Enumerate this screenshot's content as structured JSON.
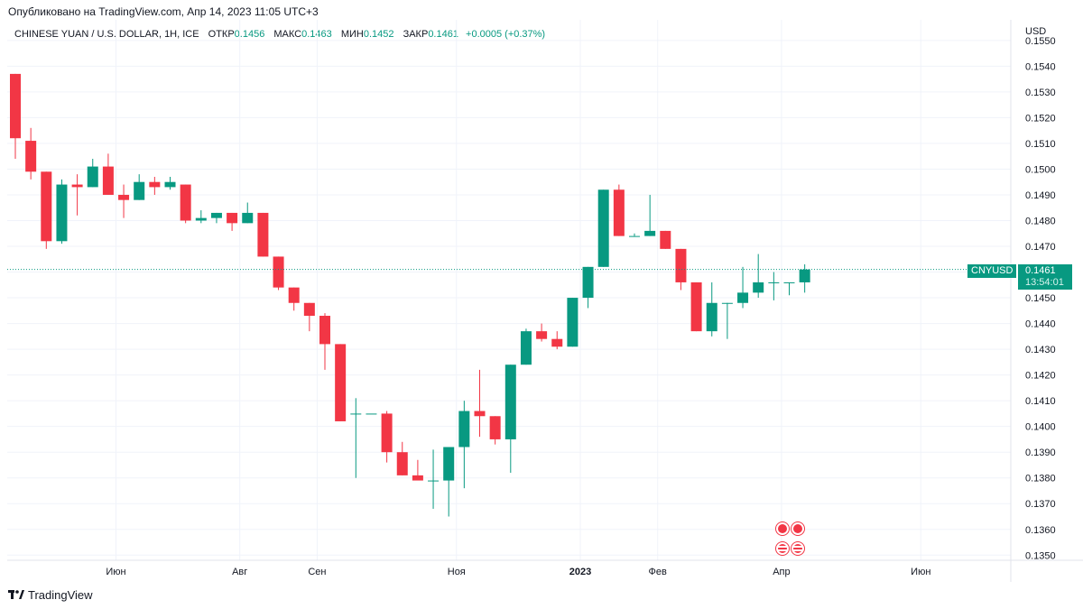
{
  "header": {
    "published": "Опубликовано на TradingView.com, Апр 14, 2023 11:05 UTC+3"
  },
  "legend": {
    "symbol_title": "CHINESE YUAN / U.S. DOLLAR, 1H, ICE",
    "open_label": "ОТКР",
    "open_value": "0.1456",
    "high_label": "МАКС",
    "high_value": "0.1463",
    "low_label": "МИН",
    "low_value": "0.1452",
    "close_label": "ЗАКР",
    "close_value": "0.1461",
    "change": "+0.0005 (+0.37%)"
  },
  "price_scale": {
    "currency": "USD",
    "ticks": [
      "0.1550",
      "0.1540",
      "0.1530",
      "0.1520",
      "0.1510",
      "0.1500",
      "0.1490",
      "0.1480",
      "0.1470",
      "0.1460",
      "0.1450",
      "0.1440",
      "0.1430",
      "0.1420",
      "0.1410",
      "0.1400",
      "0.1390",
      "0.1380",
      "0.1370",
      "0.1360",
      "0.1350"
    ]
  },
  "current_price": {
    "symbol": "CNYUSD",
    "value": "0.1461",
    "countdown": "13:54:01"
  },
  "time_axis": {
    "labels": [
      {
        "text": "Июн",
        "bar": 6.5
      },
      {
        "text": "Авг",
        "bar": 14.5
      },
      {
        "text": "Сен",
        "bar": 19.5
      },
      {
        "text": "Ноя",
        "bar": 28.5
      },
      {
        "text": "2023",
        "bar": 36.5,
        "bold": true
      },
      {
        "text": "Фев",
        "bar": 41.5
      },
      {
        "text": "Апр",
        "bar": 49.5
      },
      {
        "text": "Июн",
        "bar": 58.5
      }
    ]
  },
  "footer": {
    "brand": "TradingView"
  },
  "colors": {
    "up": "#089981",
    "down": "#f23645",
    "grid": "#f0f3fa",
    "text": "#131722"
  },
  "chart_data": {
    "type": "candlestick",
    "title": "CHINESE YUAN / U.S. DOLLAR, 1H, ICE",
    "ylabel": "USD",
    "ylim": [
      0.1348,
      0.1558
    ],
    "grid": true,
    "candles": [
      {
        "o": 0.1537,
        "h": 0.1537,
        "l": 0.1504,
        "c": 0.1512
      },
      {
        "o": 0.1511,
        "h": 0.1516,
        "l": 0.1496,
        "c": 0.1499
      },
      {
        "o": 0.1499,
        "h": 0.1499,
        "l": 0.1469,
        "c": 0.1472
      },
      {
        "o": 0.1472,
        "h": 0.1496,
        "l": 0.1471,
        "c": 0.1494
      },
      {
        "o": 0.1494,
        "h": 0.1498,
        "l": 0.1482,
        "c": 0.1493
      },
      {
        "o": 0.1493,
        "h": 0.1504,
        "l": 0.1493,
        "c": 0.1501
      },
      {
        "o": 0.1501,
        "h": 0.1506,
        "l": 0.149,
        "c": 0.149
      },
      {
        "o": 0.149,
        "h": 0.1494,
        "l": 0.1481,
        "c": 0.1488
      },
      {
        "o": 0.1488,
        "h": 0.1498,
        "l": 0.1488,
        "c": 0.1495
      },
      {
        "o": 0.1495,
        "h": 0.1497,
        "l": 0.149,
        "c": 0.1493
      },
      {
        "o": 0.1493,
        "h": 0.1497,
        "l": 0.1492,
        "c": 0.1495
      },
      {
        "o": 0.1494,
        "h": 0.1494,
        "l": 0.1479,
        "c": 0.148
      },
      {
        "o": 0.148,
        "h": 0.1484,
        "l": 0.1479,
        "c": 0.1481
      },
      {
        "o": 0.1481,
        "h": 0.1483,
        "l": 0.1479,
        "c": 0.1483
      },
      {
        "o": 0.1483,
        "h": 0.1483,
        "l": 0.1476,
        "c": 0.1479
      },
      {
        "o": 0.1479,
        "h": 0.1487,
        "l": 0.1479,
        "c": 0.1483
      },
      {
        "o": 0.1483,
        "h": 0.1483,
        "l": 0.1466,
        "c": 0.1466
      },
      {
        "o": 0.1466,
        "h": 0.1466,
        "l": 0.1453,
        "c": 0.1454
      },
      {
        "o": 0.1454,
        "h": 0.1454,
        "l": 0.1445,
        "c": 0.1448
      },
      {
        "o": 0.1448,
        "h": 0.1448,
        "l": 0.1437,
        "c": 0.1443
      },
      {
        "o": 0.1443,
        "h": 0.1444,
        "l": 0.1422,
        "c": 0.1432
      },
      {
        "o": 0.1432,
        "h": 0.1432,
        "l": 0.1402,
        "c": 0.1402
      },
      {
        "o": 0.1405,
        "h": 0.1411,
        "l": 0.138,
        "c": 0.1405
      },
      {
        "o": 0.1405,
        "h": 0.1405,
        "l": 0.1405,
        "c": 0.1405
      },
      {
        "o": 0.1405,
        "h": 0.1406,
        "l": 0.1386,
        "c": 0.139
      },
      {
        "o": 0.139,
        "h": 0.1394,
        "l": 0.1381,
        "c": 0.1381
      },
      {
        "o": 0.1381,
        "h": 0.1387,
        "l": 0.138,
        "c": 0.1379
      },
      {
        "o": 0.1379,
        "h": 0.1391,
        "l": 0.1368,
        "c": 0.1379
      },
      {
        "o": 0.1379,
        "h": 0.1392,
        "l": 0.1365,
        "c": 0.1392
      },
      {
        "o": 0.1392,
        "h": 0.141,
        "l": 0.1376,
        "c": 0.1406
      },
      {
        "o": 0.1406,
        "h": 0.1422,
        "l": 0.1396,
        "c": 0.1404
      },
      {
        "o": 0.1404,
        "h": 0.1404,
        "l": 0.1393,
        "c": 0.1395
      },
      {
        "o": 0.1395,
        "h": 0.1424,
        "l": 0.1382,
        "c": 0.1424
      },
      {
        "o": 0.1424,
        "h": 0.1438,
        "l": 0.1424,
        "c": 0.1437
      },
      {
        "o": 0.1437,
        "h": 0.144,
        "l": 0.1433,
        "c": 0.1434
      },
      {
        "o": 0.1434,
        "h": 0.1437,
        "l": 0.143,
        "c": 0.1431
      },
      {
        "o": 0.1431,
        "h": 0.145,
        "l": 0.1431,
        "c": 0.145
      },
      {
        "o": 0.145,
        "h": 0.1462,
        "l": 0.1446,
        "c": 0.1462
      },
      {
        "o": 0.1462,
        "h": 0.1492,
        "l": 0.1462,
        "c": 0.1492
      },
      {
        "o": 0.1492,
        "h": 0.1494,
        "l": 0.1474,
        "c": 0.1474
      },
      {
        "o": 0.1474,
        "h": 0.1475,
        "l": 0.1474,
        "c": 0.1474
      },
      {
        "o": 0.1474,
        "h": 0.149,
        "l": 0.1474,
        "c": 0.1476
      },
      {
        "o": 0.1476,
        "h": 0.1476,
        "l": 0.1469,
        "c": 0.1469
      },
      {
        "o": 0.1469,
        "h": 0.1469,
        "l": 0.1453,
        "c": 0.1456
      },
      {
        "o": 0.1456,
        "h": 0.1456,
        "l": 0.1437,
        "c": 0.1437
      },
      {
        "o": 0.1437,
        "h": 0.1456,
        "l": 0.1435,
        "c": 0.1448
      },
      {
        "o": 0.1448,
        "h": 0.1448,
        "l": 0.1434,
        "c": 0.1448
      },
      {
        "o": 0.1448,
        "h": 0.1462,
        "l": 0.1446,
        "c": 0.1452
      },
      {
        "o": 0.1452,
        "h": 0.1467,
        "l": 0.145,
        "c": 0.1456
      },
      {
        "o": 0.1456,
        "h": 0.146,
        "l": 0.1449,
        "c": 0.1456
      },
      {
        "o": 0.1456,
        "h": 0.1456,
        "l": 0.1451,
        "c": 0.1456
      },
      {
        "o": 0.1456,
        "h": 0.1463,
        "l": 0.1452,
        "c": 0.1461
      }
    ]
  }
}
